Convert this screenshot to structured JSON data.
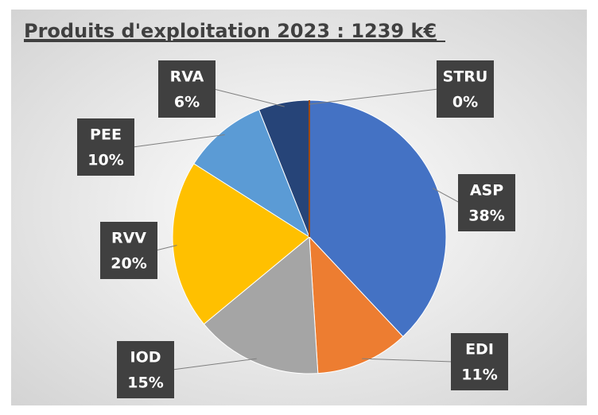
{
  "chart_data": {
    "type": "pie",
    "title": "Produits d'exploitation 2023 : 1239 k€",
    "categories": [
      "ASP",
      "EDI",
      "IOD",
      "RVV",
      "PEE",
      "RVA",
      "STRU"
    ],
    "values": [
      38,
      11,
      15,
      20,
      10,
      6,
      0
    ],
    "value_labels": [
      "38%",
      "11%",
      "15%",
      "20%",
      "10%",
      "6%",
      "0%"
    ],
    "colors": [
      "#4472c4",
      "#ed7d31",
      "#a5a5a5",
      "#ffc000",
      "#5b9bd5",
      "#264478",
      "#9e480e"
    ]
  }
}
